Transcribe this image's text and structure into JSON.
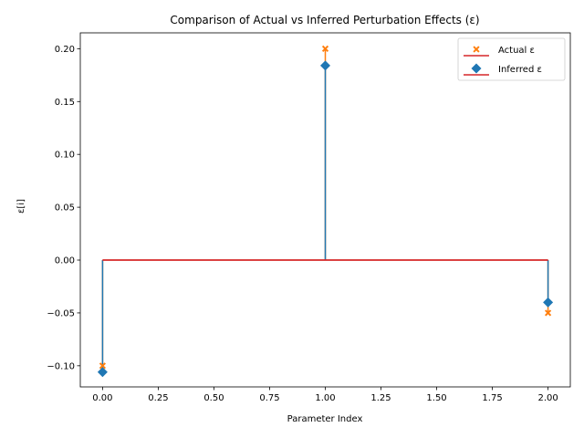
{
  "chart_data": {
    "type": "stem",
    "title": "Comparison of Actual vs Inferred Perturbation Effects (ε)",
    "xlabel": "Parameter Index",
    "ylabel": "ε[i]",
    "xlim": [
      -0.1,
      2.1
    ],
    "ylim": [
      -0.12,
      0.215
    ],
    "x": [
      0,
      1,
      2
    ],
    "baseline": 0,
    "xticks": [
      "0.00",
      "0.25",
      "0.50",
      "0.75",
      "1.00",
      "1.25",
      "1.50",
      "1.75",
      "2.00"
    ],
    "xtick_values": [
      0,
      0.25,
      0.5,
      0.75,
      1.0,
      1.25,
      1.5,
      1.75,
      2.0
    ],
    "yticks": [
      "−0.10",
      "−0.05",
      "0.00",
      "0.05",
      "0.10",
      "0.15",
      "0.20"
    ],
    "ytick_values": [
      -0.1,
      -0.05,
      0,
      0.05,
      0.1,
      0.15,
      0.2
    ],
    "series": [
      {
        "name": "Actual ε",
        "values": [
          -0.1,
          0.2,
          -0.05
        ],
        "marker": "x-filled",
        "marker_color": "#ff7f0e",
        "stem_color": "#ff7f0e",
        "baseline_color": "#d62728"
      },
      {
        "name": "Inferred ε",
        "values": [
          -0.106,
          0.184,
          -0.04
        ],
        "marker": "diamond",
        "marker_color": "#1f77b4",
        "stem_color": "#1f77b4",
        "baseline_color": "#d62728"
      }
    ],
    "legend_position": "top-right",
    "grid": false
  }
}
